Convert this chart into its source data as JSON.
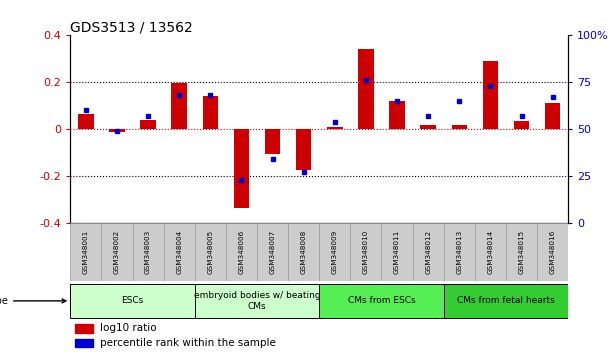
{
  "title": "GDS3513 / 13562",
  "samples": [
    "GSM348001",
    "GSM348002",
    "GSM348003",
    "GSM348004",
    "GSM348005",
    "GSM348006",
    "GSM348007",
    "GSM348008",
    "GSM348009",
    "GSM348010",
    "GSM348011",
    "GSM348012",
    "GSM348013",
    "GSM348014",
    "GSM348015",
    "GSM348016"
  ],
  "log10_ratio": [
    0.065,
    -0.01,
    0.04,
    0.195,
    0.14,
    -0.335,
    -0.105,
    -0.175,
    0.01,
    0.34,
    0.12,
    0.02,
    0.02,
    0.29,
    0.035,
    0.11
  ],
  "percentile_rank": [
    60,
    49,
    57,
    68,
    68,
    23,
    34,
    27,
    54,
    76,
    65,
    57,
    65,
    73,
    57,
    67
  ],
  "ylim": [
    -0.4,
    0.4
  ],
  "yticks_left": [
    -0.4,
    -0.2,
    0.0,
    0.2,
    0.4
  ],
  "yticks_right": [
    0,
    25,
    50,
    75,
    100
  ],
  "bar_color": "#cc0000",
  "dot_color": "#0000cc",
  "zero_line_color": "#cc0000",
  "cell_groups": [
    {
      "label": "ESCs",
      "start": 0,
      "end": 4,
      "color": "#ccffcc"
    },
    {
      "label": "embryoid bodies w/ beating\nCMs",
      "start": 4,
      "end": 8,
      "color": "#ccffcc"
    },
    {
      "label": "CMs from ESCs",
      "start": 8,
      "end": 12,
      "color": "#55ee55"
    },
    {
      "label": "CMs from fetal hearts",
      "start": 12,
      "end": 16,
      "color": "#33cc33"
    }
  ],
  "legend_bar_label": "log10 ratio",
  "legend_dot_label": "percentile rank within the sample",
  "background_color": "#ffffff",
  "bar_width": 0.5,
  "sample_box_color": "#cccccc",
  "sample_box_edge": "#999999",
  "tick_left_color": "#cc0000",
  "tick_right_color": "#0000cc"
}
